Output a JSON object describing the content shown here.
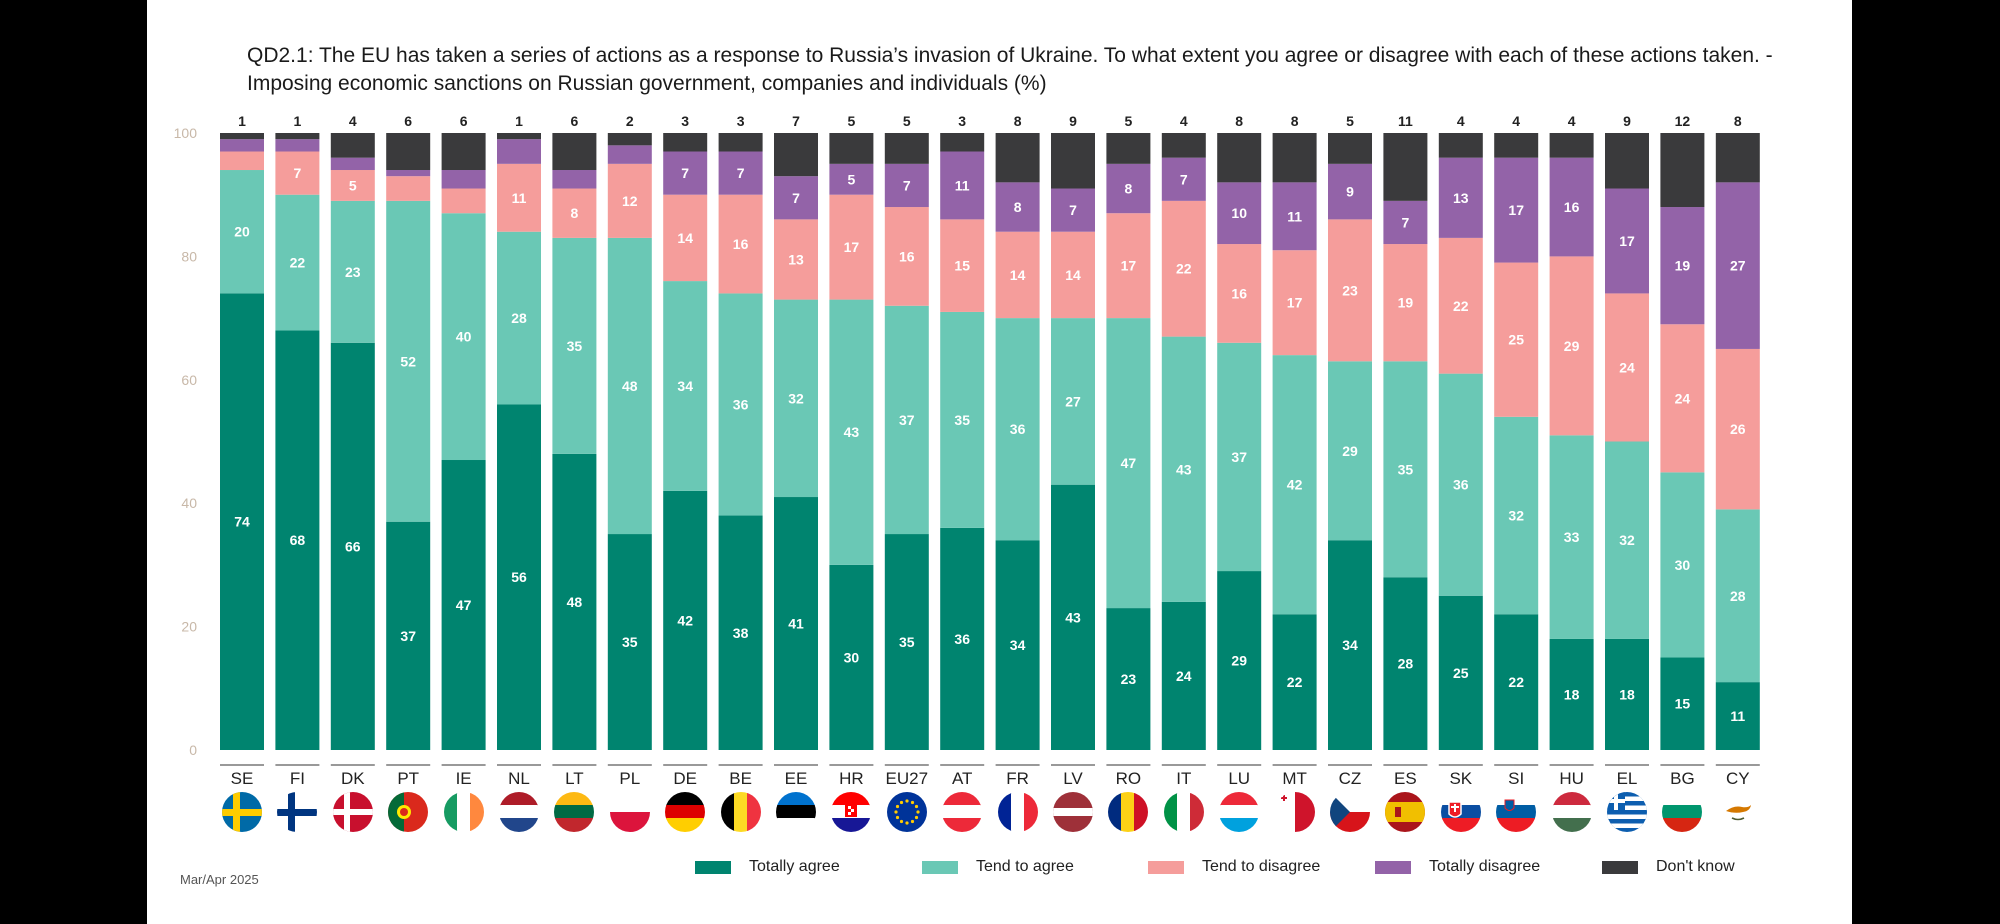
{
  "title": "QD2.1: The EU has taken a series of actions as a response to Russia’s invasion of Ukraine. To what extent you agree or disagree with each of these actions taken. - Imposing economic sanctions on Russian government, companies and individuals (%)",
  "footnote": "Mar/Apr 2025",
  "colors": {
    "Totally agree": "#00846f",
    "Tend to agree": "#6ac8b5",
    "Tend to disagree": "#f59d9b",
    "Totally disagree": "#9363a8",
    "Don't know": "#3a3a3c"
  },
  "chart_data": {
    "type": "bar",
    "stacked": true,
    "categories": [
      "SE",
      "FI",
      "DK",
      "PT",
      "IE",
      "NL",
      "LT",
      "PL",
      "DE",
      "BE",
      "EE",
      "HR",
      "EU27",
      "AT",
      "FR",
      "LV",
      "RO",
      "IT",
      "LU",
      "MT",
      "CZ",
      "ES",
      "SK",
      "SI",
      "HU",
      "EL",
      "BG",
      "CY"
    ],
    "series": [
      {
        "name": "Totally agree",
        "values": [
          74,
          68,
          66,
          37,
          47,
          56,
          48,
          35,
          42,
          38,
          41,
          30,
          35,
          36,
          34,
          43,
          23,
          24,
          29,
          22,
          34,
          28,
          25,
          22,
          18,
          18,
          15,
          11
        ]
      },
      {
        "name": "Tend to agree",
        "values": [
          20,
          22,
          23,
          52,
          40,
          28,
          35,
          48,
          34,
          36,
          32,
          43,
          37,
          35,
          36,
          27,
          47,
          43,
          37,
          42,
          29,
          35,
          36,
          32,
          33,
          32,
          30,
          28
        ]
      },
      {
        "name": "Tend to disagree",
        "values": [
          3,
          7,
          5,
          4,
          4,
          11,
          8,
          12,
          14,
          16,
          13,
          17,
          16,
          15,
          14,
          14,
          17,
          22,
          16,
          17,
          23,
          19,
          22,
          25,
          29,
          24,
          24,
          26
        ]
      },
      {
        "name": "Totally disagree",
        "values": [
          2,
          2,
          2,
          1,
          3,
          4,
          3,
          3,
          7,
          7,
          7,
          5,
          7,
          11,
          8,
          7,
          8,
          7,
          10,
          11,
          9,
          7,
          13,
          17,
          16,
          17,
          19,
          27
        ]
      },
      {
        "name": "Don't know",
        "values": [
          1,
          1,
          4,
          6,
          6,
          1,
          6,
          2,
          3,
          3,
          7,
          5,
          5,
          3,
          8,
          9,
          5,
          4,
          8,
          8,
          5,
          11,
          4,
          4,
          4,
          9,
          12,
          8
        ]
      }
    ],
    "ylim": [
      0,
      100
    ],
    "yticks": [
      "0",
      "20",
      "40",
      "60",
      "80",
      "100"
    ],
    "legend": "bottom",
    "grid": false,
    "label_threshold": 5
  },
  "flags": [
    "se",
    "fi",
    "dk",
    "pt",
    "ie",
    "nl",
    "lt",
    "pl",
    "de",
    "be",
    "ee",
    "hr",
    "eu",
    "at",
    "fr",
    "lv",
    "ro",
    "it",
    "lu",
    "mt",
    "cz",
    "es",
    "sk",
    "si",
    "hu",
    "gr",
    "bg",
    "cy"
  ]
}
